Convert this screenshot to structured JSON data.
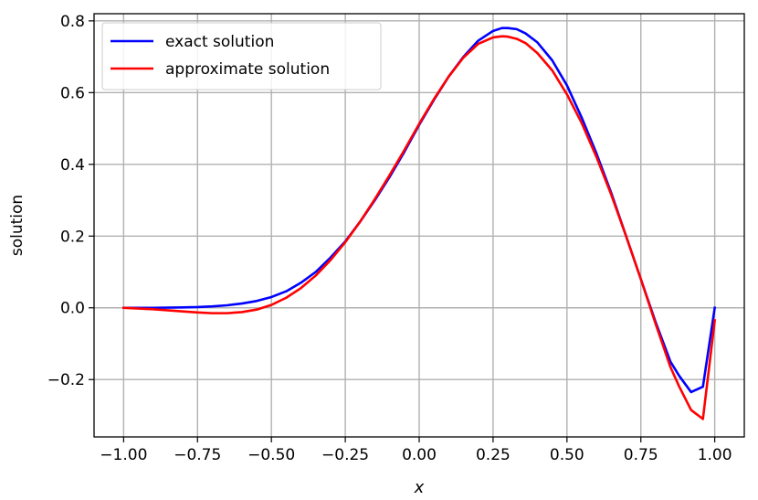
{
  "chart_data": {
    "type": "line",
    "title": "",
    "xlabel": "x",
    "ylabel": "solution",
    "xlim": [
      -1.1,
      1.1
    ],
    "ylim": [
      -0.36,
      0.82
    ],
    "xticks": [
      -1.0,
      -0.75,
      -0.5,
      -0.25,
      0.0,
      0.25,
      0.5,
      0.75,
      1.0
    ],
    "xtick_labels": [
      "−1.00",
      "−0.75",
      "−0.50",
      "−0.25",
      "0.00",
      "0.25",
      "0.50",
      "0.75",
      "1.00"
    ],
    "yticks": [
      -0.2,
      0.0,
      0.2,
      0.4,
      0.6,
      0.8
    ],
    "ytick_labels": [
      "−0.2",
      "0.0",
      "0.2",
      "0.4",
      "0.6",
      "0.8"
    ],
    "grid": true,
    "legend_position": "top-left",
    "series": [
      {
        "name": "exact solution",
        "color": "#0000ff",
        "x": [
          -1.0,
          -0.9,
          -0.8,
          -0.75,
          -0.7,
          -0.65,
          -0.6,
          -0.55,
          -0.5,
          -0.45,
          -0.4,
          -0.35,
          -0.3,
          -0.25,
          -0.2,
          -0.15,
          -0.1,
          -0.05,
          0.0,
          0.05,
          0.1,
          0.15,
          0.2,
          0.25,
          0.28,
          0.3,
          0.33,
          0.36,
          0.4,
          0.45,
          0.5,
          0.55,
          0.6,
          0.65,
          0.7,
          0.75,
          0.8,
          0.85,
          0.88,
          0.92,
          0.96,
          1.0
        ],
        "y": [
          0.0,
          0.0,
          0.001,
          0.002,
          0.004,
          0.007,
          0.012,
          0.019,
          0.03,
          0.046,
          0.07,
          0.1,
          0.14,
          0.185,
          0.24,
          0.3,
          0.365,
          0.435,
          0.51,
          0.58,
          0.645,
          0.7,
          0.745,
          0.772,
          0.78,
          0.78,
          0.777,
          0.765,
          0.74,
          0.69,
          0.62,
          0.53,
          0.43,
          0.32,
          0.2,
          0.08,
          -0.04,
          -0.15,
          -0.19,
          -0.235,
          -0.22,
          0.0
        ]
      },
      {
        "name": "approximate solution",
        "color": "#ff0000",
        "x": [
          -1.0,
          -0.9,
          -0.8,
          -0.75,
          -0.7,
          -0.65,
          -0.6,
          -0.55,
          -0.5,
          -0.45,
          -0.4,
          -0.35,
          -0.3,
          -0.25,
          -0.2,
          -0.15,
          -0.1,
          -0.05,
          0.0,
          0.05,
          0.1,
          0.15,
          0.2,
          0.25,
          0.28,
          0.3,
          0.33,
          0.36,
          0.4,
          0.45,
          0.5,
          0.55,
          0.6,
          0.65,
          0.7,
          0.75,
          0.8,
          0.85,
          0.88,
          0.92,
          0.96,
          1.0
        ],
        "y": [
          0.0,
          -0.004,
          -0.01,
          -0.013,
          -0.015,
          -0.015,
          -0.012,
          -0.005,
          0.008,
          0.028,
          0.055,
          0.09,
          0.133,
          0.183,
          0.24,
          0.303,
          0.37,
          0.44,
          0.513,
          0.582,
          0.645,
          0.698,
          0.736,
          0.754,
          0.757,
          0.756,
          0.75,
          0.738,
          0.71,
          0.662,
          0.595,
          0.515,
          0.42,
          0.315,
          0.2,
          0.08,
          -0.045,
          -0.165,
          -0.22,
          -0.285,
          -0.31,
          -0.035
        ]
      }
    ]
  }
}
